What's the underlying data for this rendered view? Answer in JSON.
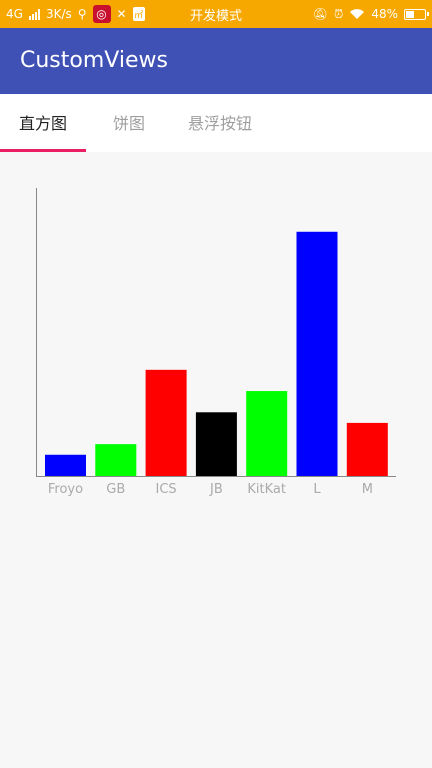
{
  "status_bar": {
    "network": "4G",
    "speed": "3K/s",
    "app_badge_icon": "netease-music-icon",
    "small_badge": "㎡",
    "center_text": "开发模式",
    "battery_percent": "48%",
    "battery_level": 0.48
  },
  "app_bar": {
    "title": "CustomViews"
  },
  "tabs": [
    {
      "label": "直方图",
      "active": true
    },
    {
      "label": "饼图",
      "active": false
    },
    {
      "label": "悬浮按钮",
      "active": false
    }
  ],
  "chart_data": {
    "type": "bar",
    "title": "",
    "xlabel": "",
    "ylabel": "",
    "categories": [
      "Froyo",
      "GB",
      "ICS",
      "JB",
      "KitKat",
      "L",
      "M"
    ],
    "values": [
      2,
      3,
      10,
      6,
      8,
      23,
      5
    ],
    "colors": [
      "#0000ff",
      "#00ff00",
      "#ff0000",
      "#000000",
      "#00ff00",
      "#0000ff",
      "#ff0000"
    ],
    "ylim": [
      0,
      27.5
    ],
    "grid": false,
    "y_axis_ticks": false
  }
}
